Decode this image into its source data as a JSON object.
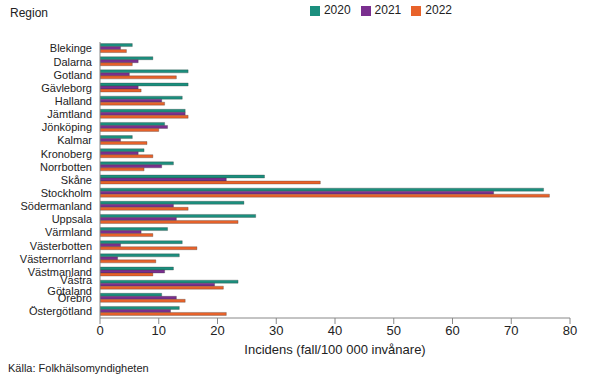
{
  "chart_data": {
    "type": "bar",
    "orientation": "horizontal",
    "y_label": "Region",
    "x_label": "Incidens (fall/100 000 invånare)",
    "annotations": [
      "Källa: Folkhälsomyndigheten"
    ],
    "categories": [
      "Blekinge",
      "Dalarna",
      "Gotland",
      "Gävleborg",
      "Halland",
      "Jämtland",
      "Jönköping",
      "Kalmar",
      "Kronoberg",
      "Norrbotten",
      "Skåne",
      "Stockholm",
      "Södermanland",
      "Uppsala",
      "Värmland",
      "Västerbotten",
      "Västernorrland",
      "Västmanland",
      "Västra Götaland",
      "Örebro",
      "Östergötland"
    ],
    "series": [
      {
        "name": "2020",
        "color": "#1b8f7e",
        "values": [
          5.5,
          9,
          15,
          15,
          14,
          14.5,
          11,
          5.5,
          7.5,
          12.5,
          28,
          75.5,
          24.5,
          26.5,
          11.5,
          14,
          13.5,
          12.5,
          23.5,
          10.5,
          13.5
        ]
      },
      {
        "name": "2021",
        "color": "#7a2f8f",
        "values": [
          3.5,
          6.5,
          5,
          6.5,
          10.5,
          14.5,
          11.5,
          3.5,
          6.5,
          10.5,
          21.5,
          67,
          12.5,
          13,
          7,
          3.5,
          3,
          11,
          19.5,
          13,
          12
        ]
      },
      {
        "name": "2022",
        "color": "#e8622a",
        "values": [
          4.5,
          5.5,
          13,
          7,
          11,
          15,
          10,
          8,
          9,
          7.5,
          37.5,
          76.5,
          15,
          23.5,
          9,
          16.5,
          9.5,
          9,
          21,
          14.5,
          21.5
        ]
      }
    ],
    "xlim": [
      0,
      80
    ],
    "xticks": [
      0,
      10,
      20,
      30,
      40,
      50,
      60,
      70,
      80
    ],
    "grid": false,
    "legend": "top"
  }
}
